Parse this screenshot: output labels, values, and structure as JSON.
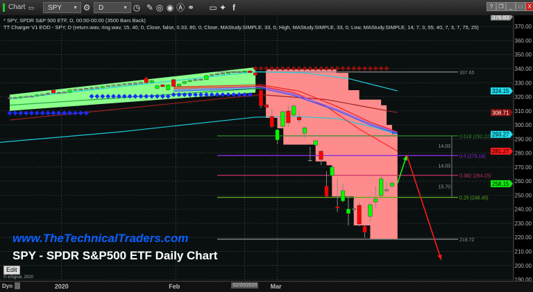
{
  "window": {
    "app_label": "Chart",
    "symbol": "SPY",
    "interval": "D",
    "toolbar_icons": [
      "link-icon",
      "settings-icon",
      "clock-icon",
      "pencil-icon",
      "refresh-icon",
      "play-icon",
      "alert-icon",
      "chain-icon",
      "comment-icon",
      "twitter-icon",
      "facebook-icon"
    ],
    "window_buttons": [
      "?",
      "❐",
      "_",
      "□",
      "X"
    ]
  },
  "legend": {
    "line1": "* SPY, SPDR S&P 500 ETF, D, 00:00-00:00 (3500 Bars Back)",
    "line2": "TT Charger V1 EOD - SPY, D (return.wav, ring.wav, 15, 40, 0, Close, false, 0.33, 80, 0, Close, MAStudy.SIMPLE, 33, 0, High, MAStudy.SIMPLE, 33, 0, Low, MAStudy.SIMPLE, 14, 7, 3, 55, 40, 7, 3, 7, 75, 25)"
  },
  "overlay": {
    "url": "www.TheTechnicalTraders.com",
    "title": "SPY - SPDR S&P500 ETF Daily Chart",
    "edit_button": "Edit",
    "copyright": "© eSignal, 2020"
  },
  "time_axis": {
    "dyn_label": "Dyn",
    "ticks": [
      {
        "label": "2020",
        "bar": 9.5
      },
      {
        "label": "Feb",
        "bar": 30.4
      },
      {
        "label": "Mar",
        "bar": 49
      }
    ],
    "cursor_date": {
      "label": "02/20/2020",
      "bar": 43
    }
  },
  "chart_data": {
    "type": "candlestick",
    "ylim": [
      190,
      376.83
    ],
    "y_ticks": [
      370,
      360,
      350,
      340,
      330,
      320,
      310,
      300,
      290,
      280,
      270,
      260,
      250,
      240,
      230,
      220,
      210,
      200,
      190
    ],
    "grid": true,
    "colors": {
      "up": "#00ff00",
      "down": "#ff0000",
      "background": "#0a1010",
      "green_zone": "#8cff8c",
      "red_zone": "#ff8c8c"
    },
    "candles_ohlc": [
      [
        318.8,
        320.0,
        318.2,
        319.4
      ],
      [
        319.5,
        320.1,
        318.4,
        319.0
      ],
      [
        319.2,
        320.6,
        318.6,
        320.0
      ],
      [
        320.1,
        320.9,
        319.5,
        320.3
      ],
      [
        320.5,
        321.1,
        319.6,
        320.2
      ],
      [
        320.6,
        322.0,
        320.0,
        321.4
      ],
      [
        321.5,
        322.4,
        320.9,
        321.8
      ],
      [
        322.0,
        323.1,
        321.4,
        322.5
      ],
      [
        324.9,
        325.5,
        322.0,
        322.6
      ],
      [
        322.8,
        323.7,
        322.2,
        323.1
      ],
      [
        323.4,
        324.0,
        322.4,
        323.0
      ],
      [
        323.2,
        325.4,
        322.6,
        324.8
      ],
      [
        324.9,
        325.9,
        324.3,
        325.3
      ],
      [
        325.5,
        326.1,
        324.5,
        325.1
      ],
      [
        325.6,
        326.6,
        325.0,
        326.0
      ],
      [
        326.1,
        327.0,
        325.5,
        326.4
      ],
      [
        326.8,
        327.4,
        325.9,
        326.5
      ],
      [
        326.6,
        327.9,
        326.0,
        327.3
      ],
      [
        327.5,
        328.5,
        326.9,
        327.9
      ],
      [
        328.3,
        328.9,
        327.4,
        328.0
      ],
      [
        328.1,
        329.3,
        327.5,
        328.7
      ],
      [
        328.9,
        329.8,
        328.3,
        329.2
      ],
      [
        329.4,
        330.0,
        328.4,
        329.0
      ],
      [
        329.3,
        330.4,
        328.7,
        329.8
      ],
      [
        329.9,
        330.8,
        329.3,
        330.2
      ],
      [
        333.4,
        334.0,
        329.4,
        330.0
      ],
      [
        330.2,
        332.0,
        329.6,
        331.4
      ],
      [
        326.0,
        328.5,
        325.4,
        327.9
      ],
      [
        328.5,
        329.1,
        326.6,
        327.2
      ],
      [
        325.0,
        329.0,
        324.4,
        328.4
      ],
      [
        332.2,
        332.8,
        326.8,
        327.4
      ],
      [
        327.6,
        329.6,
        327.0,
        329.0
      ],
      [
        329.5,
        331.4,
        328.9,
        330.8
      ],
      [
        331.0,
        332.2,
        330.4,
        331.6
      ],
      [
        331.8,
        332.9,
        331.2,
        332.3
      ],
      [
        332.5,
        333.1,
        331.5,
        332.1
      ],
      [
        332.3,
        335.7,
        331.7,
        335.1
      ],
      [
        335.3,
        336.4,
        334.7,
        335.8
      ],
      [
        336.0,
        337.0,
        335.4,
        336.4
      ],
      [
        336.8,
        337.4,
        335.9,
        336.5
      ],
      [
        336.6,
        337.9,
        336.0,
        337.3
      ],
      [
        337.5,
        338.5,
        336.9,
        337.9
      ],
      [
        338.0,
        338.6,
        337.0,
        337.6
      ],
      [
        337.7,
        338.9,
        337.1,
        338.3
      ],
      [
        338.4,
        339.0,
        336.6,
        337.2
      ],
      [
        337.0,
        337.6,
        334.8,
        335.4
      ],
      [
        324.7,
        325.2,
        312.0,
        313.4
      ],
      [
        314.3,
        315.0,
        311.8,
        312.4
      ],
      [
        306.0,
        311.4,
        298.0,
        298.6
      ],
      [
        289.2,
        297.0,
        286.2,
        296.6
      ],
      [
        299.0,
        310.0,
        298.0,
        309.4
      ],
      [
        309.9,
        313.9,
        298.6,
        301.5
      ],
      [
        307.0,
        314.3,
        306.0,
        313.4
      ],
      [
        305.5,
        309.0,
        301.0,
        303.5
      ],
      [
        294.1,
        299.0,
        290.2,
        298.0
      ],
      [
        275.0,
        284.3,
        274.0,
        274.5
      ],
      [
        285.7,
        289.0,
        285.0,
        288.7
      ],
      [
        281.3,
        282.0,
        271.4,
        275.4
      ],
      [
        256.6,
        267.0,
        248.0,
        249.2
      ],
      [
        264.0,
        271.0,
        263.0,
        270.0
      ],
      [
        242.0,
        262.0,
        238.0,
        240.8
      ],
      [
        245.8,
        258.0,
        245.0,
        253.2
      ],
      [
        236.9,
        249.2,
        228.5,
        240.3
      ],
      [
        239.8,
        246.6,
        237.0,
        240.4
      ],
      [
        242.8,
        245.0,
        228.0,
        229.5
      ],
      [
        228.0,
        228.5,
        219.6,
        223.6
      ],
      [
        234.9,
        244.0,
        231.0,
        243.3
      ],
      [
        245.3,
        256.6,
        240.8,
        247.3
      ],
      [
        249.7,
        263.5,
        249.0,
        261.6
      ],
      [
        253.9,
        259.5,
        251.7,
        253.7
      ],
      [
        256.6,
        259.0,
        254.7,
        258.6
      ]
    ],
    "green_zone": [
      [
        0,
        321.5
      ],
      [
        45,
        341
      ],
      [
        45,
        323
      ],
      [
        0,
        310
      ]
    ],
    "red_zone": [
      [
        46.9,
        339.5
      ],
      [
        59.8,
        339.5
      ],
      [
        59.8,
        337
      ],
      [
        62,
        337
      ],
      [
        62,
        324.7
      ],
      [
        64,
        324.7
      ],
      [
        64,
        318
      ],
      [
        68,
        318
      ],
      [
        68,
        314
      ],
      [
        69,
        314
      ],
      [
        69,
        300
      ],
      [
        70,
        300
      ],
      [
        70,
        293.5
      ],
      [
        71,
        293.5
      ],
      [
        71,
        218.7
      ],
      [
        66,
        218.7
      ],
      [
        66,
        228.5
      ],
      [
        63,
        228.5
      ],
      [
        63,
        249.1
      ],
      [
        59,
        249.1
      ],
      [
        59,
        271.3
      ],
      [
        58,
        271.3
      ],
      [
        58,
        274
      ],
      [
        56,
        274
      ],
      [
        56,
        286
      ],
      [
        50.1,
        286
      ],
      [
        50.1,
        297.6
      ],
      [
        49,
        297.6
      ],
      [
        49,
        305
      ],
      [
        46.9,
        305
      ]
    ],
    "lines": [
      {
        "color": "#20c8d8",
        "points": [
          [
            -2,
            287.5
          ],
          [
            20,
            295
          ],
          [
            45,
            305.5
          ],
          [
            52,
            306
          ],
          [
            60,
            304.5
          ],
          [
            66,
            299
          ],
          [
            71,
            293.3
          ]
        ]
      },
      {
        "color": "#20d0e0",
        "points": [
          [
            0,
            318.5
          ],
          [
            45,
            337.8
          ],
          [
            54,
            337
          ],
          [
            62,
            333
          ],
          [
            71,
            324.2
          ]
        ]
      },
      {
        "color": "#a02020",
        "points": [
          [
            0,
            303.5
          ],
          [
            46,
            321.5
          ],
          [
            58,
            318
          ],
          [
            71,
            308.7
          ]
        ]
      },
      {
        "color": "#ff2020",
        "points": [
          [
            30,
            326
          ],
          [
            46,
            327.5
          ],
          [
            52,
            323
          ],
          [
            58,
            313
          ],
          [
            64,
            297
          ],
          [
            71,
            281.3
          ]
        ]
      },
      {
        "color": "#ee2020",
        "points": [
          [
            30,
            327
          ],
          [
            46,
            328.5
          ],
          [
            53,
            324
          ],
          [
            60,
            313
          ],
          [
            66,
            302
          ],
          [
            71,
            295
          ]
        ]
      },
      {
        "color": "#8060ff",
        "points": [
          [
            30,
            325
          ],
          [
            46,
            327
          ],
          [
            52,
            322
          ],
          [
            60,
            311
          ],
          [
            66,
            301
          ],
          [
            71,
            294.5
          ]
        ]
      },
      {
        "color": "#3050ff",
        "points": [
          [
            30,
            324
          ],
          [
            46,
            326
          ],
          [
            52,
            321
          ],
          [
            60,
            310
          ],
          [
            66,
            300
          ],
          [
            71,
            293.8
          ]
        ]
      },
      {
        "color": "#20a040",
        "points": [
          [
            0,
            314
          ],
          [
            46,
            326
          ]
        ]
      }
    ],
    "blue_diamonds": [
      {
        "from": 0,
        "to": 14,
        "price": 308.4
      },
      {
        "from": 15,
        "to": 29,
        "price": 320.3
      },
      {
        "from": 30,
        "to": 44,
        "price": 321.5
      }
    ],
    "red_diamonds": {
      "from": 45,
      "to": 69,
      "price": 340.2
    },
    "fib_levels": [
      {
        "label": "337.65",
        "price": 337.65,
        "color": "#8a8a8a"
      },
      {
        "label": "0.618 (292.22)",
        "price": 292.22,
        "color": "#2e8b2e"
      },
      {
        "label": "0.5 (278.18)",
        "price": 278.18,
        "color": "#8a2be2"
      },
      {
        "label": "0.382 (264.15)",
        "price": 264.15,
        "color": "#c8306a"
      },
      {
        "label": "0.25 (248.45)",
        "price": 248.45,
        "color": "#5ea81a"
      },
      {
        "label": "218.72",
        "price": 218.72,
        "color": "#8a8a8a"
      }
    ],
    "fib_measures": [
      {
        "label": "14.03",
        "from": 292.22,
        "to": 278.18
      },
      {
        "label": "14.03",
        "from": 278.18,
        "to": 264.15
      },
      {
        "label": "15.70",
        "from": 264.15,
        "to": 248.45
      }
    ],
    "arrows": [
      {
        "color": "#22ee22",
        "from": [
          71,
          258.5
        ],
        "to": [
          72.7,
          278.5
        ]
      },
      {
        "color": "#ff1a1a",
        "from": [
          72.7,
          278.5
        ],
        "to": [
          79,
          204
        ]
      }
    ],
    "price_tags": [
      {
        "label": "376.83",
        "price": 376.83,
        "color": "#9a9a9a"
      },
      {
        "label": "324.15",
        "price": 324.15,
        "color": "#20e0f0"
      },
      {
        "label": "308.71",
        "price": 308.71,
        "color": "#8b1010"
      },
      {
        "label": "293.27",
        "price": 293.27,
        "color": "#20e0f0"
      },
      {
        "label": "281.27",
        "price": 281.27,
        "color": "#ff1a1a"
      },
      {
        "label": "258.15",
        "price": 258.15,
        "color": "#10ee10"
      }
    ]
  }
}
